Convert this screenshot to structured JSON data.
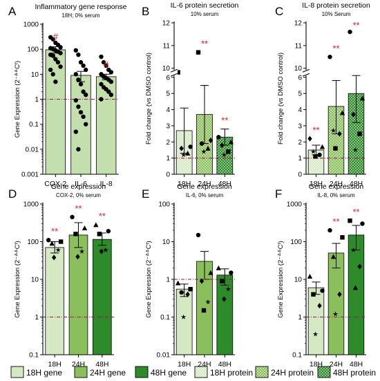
{
  "colors": {
    "green_18h": "#d5e8c4",
    "green_24h": "#8bbf5c",
    "green_48h": "#2e8b2a",
    "green_a": "#c3dfae",
    "significance": "#e02020",
    "reference_line": "#8b1a4a",
    "axis": "#000000"
  },
  "panel_letters": [
    "A",
    "B",
    "C",
    "D",
    "E",
    "F"
  ],
  "legend": [
    {
      "label": "18H gene",
      "color_key": "green_18h",
      "pattern": "solid"
    },
    {
      "label": "24H gene",
      "color_key": "green_24h",
      "pattern": "solid"
    },
    {
      "label": "48H gene",
      "color_key": "green_48h",
      "pattern": "solid"
    },
    {
      "label": "18H protein",
      "color_key": "green_18h",
      "pattern": "checker"
    },
    {
      "label": "24H protein",
      "color_key": "green_24h",
      "pattern": "checker"
    },
    {
      "label": "48H protein",
      "color_key": "green_48h",
      "pattern": "checker"
    }
  ],
  "chart_data": [
    {
      "letter": "A",
      "type": "bar",
      "title": "Inflammatory gene response",
      "subtitle": "18H; 0% serum",
      "ylabel": "Gene Expression (2⁻ᐞᐞCᵗ)",
      "scale": "log",
      "ylim": [
        0.001,
        1000
      ],
      "ticks": [
        0.001,
        0.01,
        0.1,
        1,
        10,
        100,
        1000
      ],
      "tick_labels": [
        "0.001",
        "0.01",
        "0.1",
        "1",
        "10",
        "100",
        "1000"
      ],
      "reference": 1,
      "categories": [
        "COX-2",
        "IL-6",
        "IL-8"
      ],
      "values": [
        95,
        9,
        8
      ],
      "errors": [
        [
          70,
          125
        ],
        [
          5,
          13
        ],
        [
          6,
          10
        ]
      ],
      "fill_keys": [
        "green_a",
        "green_a",
        "green_a"
      ],
      "pattern": "solid",
      "significance": [
        "#",
        "",
        "#"
      ],
      "points": [
        [
          300,
          250,
          180,
          150,
          120,
          110,
          100,
          90,
          80,
          70,
          60,
          55,
          40,
          30,
          20,
          15,
          10,
          5
        ],
        [
          90,
          60,
          30,
          22,
          15,
          10,
          6,
          4,
          2,
          1.5,
          0.9,
          0.5,
          0.3,
          0.2,
          0.1,
          0.05,
          0.01
        ],
        [
          50,
          30,
          22,
          15,
          12,
          10,
          8,
          7,
          6,
          5,
          4,
          3,
          2.5,
          2,
          1.5,
          1
        ]
      ],
      "point_shape": "circle"
    },
    {
      "letter": "B",
      "type": "bar",
      "title": "IL-6 protein secretion",
      "subtitle": "10% serum",
      "ylabel": "Fold change (vs DMSO control)",
      "scale": "broken",
      "ylim": [
        0,
        12
      ],
      "ticks": [
        0,
        1,
        2,
        3,
        4,
        5,
        6,
        10,
        11,
        12
      ],
      "tick_labels": [
        "0",
        "1",
        "2",
        "3",
        "4",
        "5",
        "6",
        "10",
        "11",
        "12"
      ],
      "reference": 1,
      "categories": [
        "18H",
        "24H",
        "48H"
      ],
      "values": [
        2.7,
        3.7,
        2.3
      ],
      "errors": [
        [
          1.3,
          4.1
        ],
        [
          1.9,
          5.5
        ],
        [
          1.8,
          2.8
        ]
      ],
      "fill_keys": [
        "green_18h",
        "green_24h",
        "green_48h"
      ],
      "pattern": "checker",
      "significance": [
        "",
        "**",
        "**"
      ],
      "points": [
        [
          {
            "v": 8.2,
            "s": "square"
          },
          {
            "v": 1.7,
            "s": "circle"
          },
          {
            "v": 1.6,
            "s": "diamond"
          },
          {
            "v": 1.3,
            "s": "triangle"
          },
          {
            "v": 1.2,
            "s": "star"
          }
        ],
        [
          {
            "v": 10.7,
            "s": "square"
          },
          {
            "v": 2.1,
            "s": "diamond"
          },
          {
            "v": 1.9,
            "s": "circle"
          },
          {
            "v": 1.6,
            "s": "triangle"
          },
          {
            "v": 1.4,
            "s": "star"
          }
        ],
        [
          {
            "v": 2.3,
            "s": "circle"
          },
          {
            "v": 2.0,
            "s": "triangle"
          },
          {
            "v": 1.8,
            "s": "diamond"
          },
          {
            "v": 1.4,
            "s": "square"
          },
          {
            "v": 1.2,
            "s": "star"
          }
        ]
      ]
    },
    {
      "letter": "C",
      "type": "bar",
      "title": "IL-8 protein secretion",
      "subtitle": "10% Serum",
      "ylabel": "Fold change (vs DMSO control)",
      "scale": "broken",
      "ylim": [
        0,
        12
      ],
      "ticks": [
        0,
        1,
        2,
        3,
        4,
        5,
        6,
        10,
        11,
        12
      ],
      "tick_labels": [
        "0",
        "1",
        "2",
        "3",
        "4",
        "5",
        "6",
        "10",
        "11",
        "12"
      ],
      "reference": 1,
      "categories": [
        "18H",
        "24H",
        "48H"
      ],
      "values": [
        1.5,
        4.2,
        5.0
      ],
      "errors": [
        [
          1.2,
          1.8
        ],
        [
          2.5,
          5.8
        ],
        [
          3.2,
          6.8
        ]
      ],
      "fill_keys": [
        "green_18h",
        "green_24h",
        "green_48h"
      ],
      "pattern": "checker",
      "significance": [
        "**",
        "**",
        "**"
      ],
      "points": [
        [
          {
            "v": 2.2,
            "s": "diamond"
          },
          {
            "v": 1.7,
            "s": "triangle"
          },
          {
            "v": 1.4,
            "s": "star"
          },
          {
            "v": 1.2,
            "s": "circle"
          },
          {
            "v": 1.1,
            "s": "square"
          }
        ],
        [
          {
            "v": 10.5,
            "s": "circle"
          },
          {
            "v": 3.8,
            "s": "triangle"
          },
          {
            "v": 2.7,
            "s": "star"
          },
          {
            "v": 2.5,
            "s": "diamond"
          },
          {
            "v": 1.6,
            "s": "square"
          }
        ],
        [
          {
            "v": 11.6,
            "s": "circle"
          },
          {
            "v": 4.7,
            "s": "triangle"
          },
          {
            "v": 3.7,
            "s": "diamond"
          },
          {
            "v": 2.5,
            "s": "square"
          },
          {
            "v": 1.5,
            "s": "star"
          }
        ]
      ]
    },
    {
      "letter": "D",
      "type": "bar",
      "title": "Gene expression",
      "subtitle": "COX-2, 0% serum",
      "ylabel": "Gene Expression (2⁻ᐞᐞCᵗ)",
      "scale": "log",
      "ylim": [
        0.1,
        1000
      ],
      "ticks": [
        0.1,
        1,
        10,
        100,
        1000
      ],
      "tick_labels": [
        "0.1",
        "1",
        "10",
        "100",
        "1000"
      ],
      "reference": 1,
      "categories": [
        "18H",
        "24H",
        "48H"
      ],
      "values": [
        70,
        150,
        115
      ],
      "errors": [
        [
          50,
          100
        ],
        [
          70,
          320
        ],
        [
          80,
          170
        ]
      ],
      "fill_keys": [
        "green_18h",
        "green_24h",
        "green_48h"
      ],
      "pattern": "solid",
      "significance": [
        "**",
        "**",
        "**"
      ],
      "points": [
        [
          {
            "v": 110,
            "s": "circle"
          },
          {
            "v": 100,
            "s": "square"
          },
          {
            "v": 90,
            "s": "triangle"
          },
          {
            "v": 60,
            "s": "star"
          },
          {
            "v": 38,
            "s": "diamond"
          }
        ],
        [
          {
            "v": 450,
            "s": "circle"
          },
          {
            "v": 230,
            "s": "triangle"
          },
          {
            "v": 160,
            "s": "square"
          },
          {
            "v": 55,
            "s": "star"
          },
          {
            "v": 40,
            "s": "diamond"
          }
        ],
        [
          {
            "v": 280,
            "s": "triangle"
          },
          {
            "v": 190,
            "s": "circle"
          },
          {
            "v": 160,
            "s": "square"
          },
          {
            "v": 60,
            "s": "star"
          },
          {
            "v": 55,
            "s": "diamond"
          }
        ]
      ]
    },
    {
      "letter": "E",
      "type": "bar",
      "title": "Gene expression",
      "subtitle": "IL-6, 0% serum",
      "ylabel": "Gene Expression (2⁻ᐞᐞCᵗ)",
      "scale": "log",
      "ylim": [
        0.01,
        100
      ],
      "ticks": [
        0.01,
        0.1,
        1,
        10,
        100
      ],
      "tick_labels": [
        "0.01",
        "0.1",
        "1",
        "10",
        "100"
      ],
      "reference": 1,
      "categories": [
        "18H",
        "24H",
        "48H"
      ],
      "values": [
        0.55,
        3,
        1.3
      ],
      "errors": [
        [
          0.35,
          0.75
        ],
        [
          1,
          5.5
        ],
        [
          0.7,
          1.9
        ]
      ],
      "fill_keys": [
        "green_18h",
        "green_24h",
        "green_48h"
      ],
      "pattern": "solid",
      "significance": [
        "",
        "",
        ""
      ],
      "points": [
        [
          {
            "v": 0.8,
            "s": "triangle"
          },
          {
            "v": 0.55,
            "s": "square"
          },
          {
            "v": 0.45,
            "s": "circle"
          },
          {
            "v": 0.4,
            "s": "diamond"
          },
          {
            "v": 0.1,
            "s": "star"
          }
        ],
        [
          {
            "v": 15,
            "s": "circle"
          },
          {
            "v": 1.5,
            "s": "triangle"
          },
          {
            "v": 0.9,
            "s": "diamond"
          },
          {
            "v": 0.25,
            "s": "star"
          },
          {
            "v": 0.15,
            "s": "square"
          }
        ],
        [
          {
            "v": 2.0,
            "s": "triangle"
          },
          {
            "v": 1.5,
            "s": "circle"
          },
          {
            "v": 0.9,
            "s": "square"
          },
          {
            "v": 0.55,
            "s": "star"
          },
          {
            "v": 0.3,
            "s": "diamond"
          }
        ]
      ]
    },
    {
      "letter": "F",
      "type": "bar",
      "title": "Gene expression",
      "subtitle": "IL-8, 0% serum",
      "ylabel": "Gene Expression (2⁻ᐞᐞCᵗ)",
      "scale": "log",
      "ylim": [
        0.1,
        1000
      ],
      "ticks": [
        0.1,
        1,
        10,
        100,
        1000
      ],
      "tick_labels": [
        "0.1",
        "1",
        "10",
        "100",
        "1000"
      ],
      "reference": 1,
      "categories": [
        "18H",
        "24H",
        "48H"
      ],
      "values": [
        6,
        50,
        150
      ],
      "errors": [
        [
          4,
          8.5
        ],
        [
          20,
          90
        ],
        [
          60,
          270
        ]
      ],
      "fill_keys": [
        "green_18h",
        "green_24h",
        "green_48h"
      ],
      "pattern": "solid",
      "significance": [
        "",
        "**",
        "**"
      ],
      "points": [
        [
          {
            "v": 12,
            "s": "triangle"
          },
          {
            "v": 5,
            "s": "circle"
          },
          {
            "v": 4,
            "s": "square"
          },
          {
            "v": 2,
            "s": "diamond"
          },
          {
            "v": 0.35,
            "s": "star"
          }
        ],
        [
          {
            "v": 200,
            "s": "circle"
          },
          {
            "v": 130,
            "s": "square"
          },
          {
            "v": 40,
            "s": "triangle"
          },
          {
            "v": 4,
            "s": "diamond"
          },
          {
            "v": 1.2,
            "s": "star"
          }
        ],
        [
          {
            "v": 360,
            "s": "square"
          },
          {
            "v": 300,
            "s": "circle"
          },
          {
            "v": 60,
            "s": "star"
          },
          {
            "v": 22,
            "s": "diamond"
          },
          {
            "v": 6,
            "s": "triangle"
          }
        ]
      ]
    }
  ]
}
